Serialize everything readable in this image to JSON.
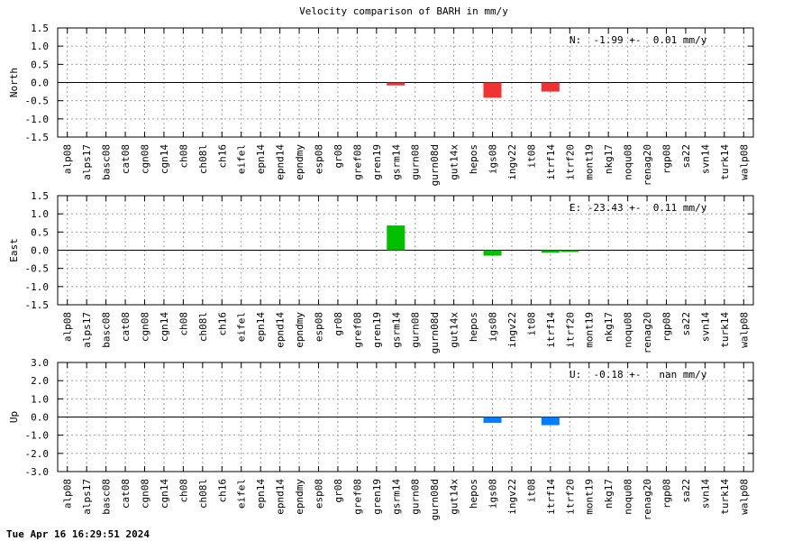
{
  "title": "Velocity comparison of BARH in mm/y",
  "timestamp": "Tue Apr 16 16:29:51 2024",
  "chart_data": [
    {
      "type": "bar",
      "component": "north",
      "ylabel": "North",
      "annotation": "N:  -1.99 +-  0.01 mm/y",
      "color": "#f03232",
      "ylim": [
        -1.5,
        1.5
      ],
      "yticks": [
        1.5,
        1.0,
        0.5,
        0.0,
        -0.5,
        -1.0,
        -1.5
      ],
      "ytick_labels": [
        "1.5",
        "1.0",
        "0.5",
        "0.0",
        "-0.5",
        "-1.0",
        "-1.5"
      ],
      "grid": true,
      "categories": [
        "alp08",
        "alps17",
        "basc08",
        "cat08",
        "cgn08",
        "cgn14",
        "ch08",
        "ch08l",
        "ch16",
        "eifel",
        "epn14",
        "epnd14",
        "epndmy",
        "esp08",
        "gr08",
        "gref08",
        "gren19",
        "gsrm14",
        "gurn08",
        "gurn08d",
        "gut14x",
        "hepos",
        "igs08",
        "ingv22",
        "it08",
        "itrf14",
        "itrf20",
        "mont19",
        "nkg17",
        "noqu08",
        "renag20",
        "rgp08",
        "sa22",
        "svn14",
        "turk14",
        "walp08"
      ],
      "values": [
        0,
        0,
        0,
        0,
        0,
        0,
        0,
        0,
        0,
        0,
        0,
        0,
        0,
        0,
        0,
        0,
        0,
        -0.08,
        0,
        0,
        0,
        0,
        -0.42,
        0,
        0,
        -0.25,
        0,
        0,
        0,
        0,
        0,
        0,
        0,
        0,
        0,
        0
      ]
    },
    {
      "type": "bar",
      "component": "east",
      "ylabel": "East",
      "annotation": "E: -23.43 +-  0.11 mm/y",
      "color": "#00c000",
      "ylim": [
        -1.5,
        1.5
      ],
      "yticks": [
        1.5,
        1.0,
        0.5,
        0.0,
        -0.5,
        -1.0,
        -1.5
      ],
      "ytick_labels": [
        "1.5",
        "1.0",
        "0.5",
        "0.0",
        "-0.5",
        "-1.0",
        "-1.5"
      ],
      "grid": true,
      "categories": [
        "alp08",
        "alps17",
        "basc08",
        "cat08",
        "cgn08",
        "cgn14",
        "ch08",
        "ch08l",
        "ch16",
        "eifel",
        "epn14",
        "epnd14",
        "epndmy",
        "esp08",
        "gr08",
        "gref08",
        "gren19",
        "gsrm14",
        "gurn08",
        "gurn08d",
        "gut14x",
        "hepos",
        "igs08",
        "ingv22",
        "it08",
        "itrf14",
        "itrf20",
        "mont19",
        "nkg17",
        "noqu08",
        "renag20",
        "rgp08",
        "sa22",
        "svn14",
        "turk14",
        "walp08"
      ],
      "values": [
        0,
        0,
        0,
        0,
        0,
        0,
        0,
        0,
        0,
        0,
        0,
        0,
        0,
        0,
        0,
        0,
        0,
        0.68,
        0,
        0,
        0,
        0,
        -0.15,
        0,
        0,
        -0.07,
        -0.05,
        0,
        0,
        0,
        0,
        0,
        0,
        0,
        0,
        0
      ]
    },
    {
      "type": "bar",
      "component": "up",
      "ylabel": "Up",
      "annotation": "U:  -0.18 +-   nan mm/y",
      "color": "#0080ff",
      "ylim": [
        -3.0,
        3.0
      ],
      "yticks": [
        3.0,
        2.0,
        1.0,
        0.0,
        -1.0,
        -2.0,
        -3.0
      ],
      "ytick_labels": [
        "3.0",
        "2.0",
        "1.0",
        "0.0",
        "-1.0",
        "-2.0",
        "-3.0"
      ],
      "grid": true,
      "categories": [
        "alp08",
        "alps17",
        "basc08",
        "cat08",
        "cgn08",
        "cgn14",
        "ch08",
        "ch08l",
        "ch16",
        "eifel",
        "epn14",
        "epnd14",
        "epndmy",
        "esp08",
        "gr08",
        "gref08",
        "gren19",
        "gsrm14",
        "gurn08",
        "gurn08d",
        "gut14x",
        "hepos",
        "igs08",
        "ingv22",
        "it08",
        "itrf14",
        "itrf20",
        "mont19",
        "nkg17",
        "noqu08",
        "renag20",
        "rgp08",
        "sa22",
        "svn14",
        "turk14",
        "walp08"
      ],
      "values": [
        0,
        0,
        0,
        0,
        0,
        0,
        0,
        0,
        0,
        0,
        0,
        0,
        0,
        0,
        0,
        0,
        0,
        0,
        0,
        0,
        0,
        0,
        -0.32,
        0,
        0,
        -0.45,
        0,
        0,
        0,
        0,
        0,
        0,
        0,
        0,
        0,
        0
      ]
    }
  ]
}
